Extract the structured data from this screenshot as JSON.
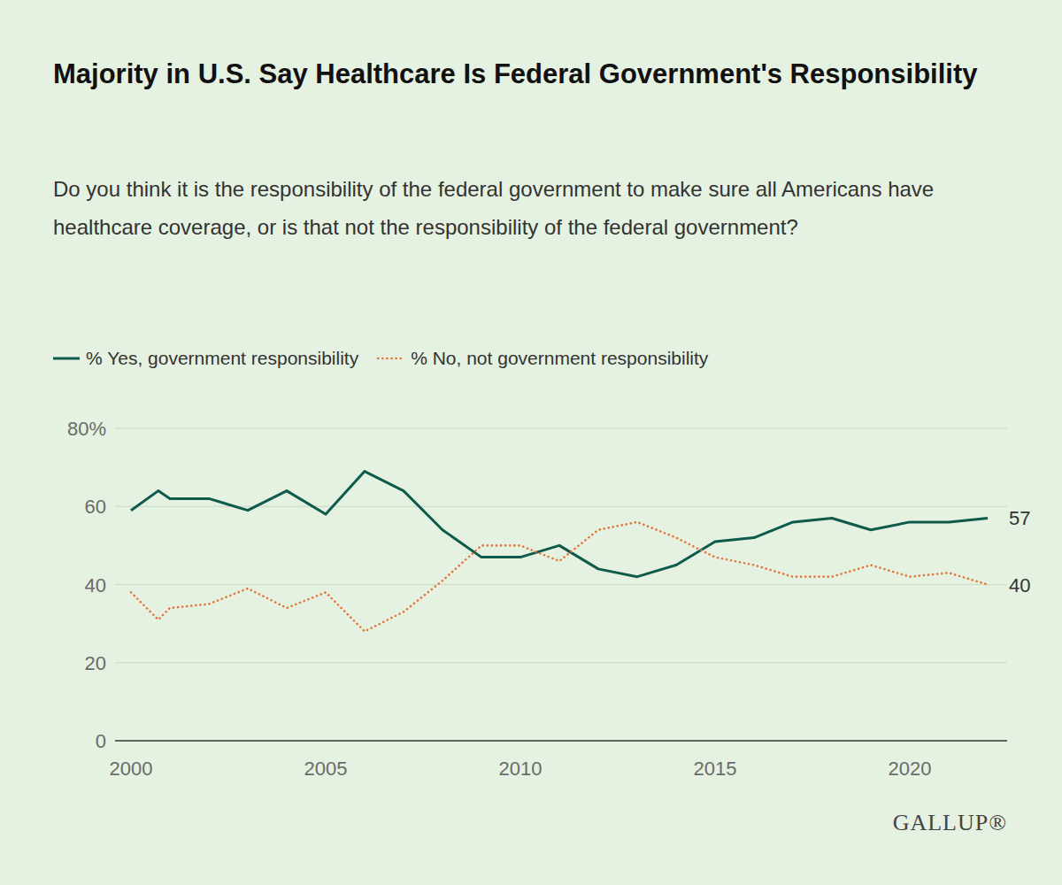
{
  "chart_data": {
    "type": "line",
    "title": "Majority in U.S. Say Healthcare Is Federal Government's Responsibility",
    "subtitle": "Do you think it is the responsibility of the federal government to make sure all Americans have healthcare coverage, or is that not the responsibility of the federal government?",
    "source": "GALLUP®",
    "x": [
      2000,
      2000.7,
      2001,
      2002,
      2003,
      2004,
      2005,
      2006,
      2007,
      2008,
      2009,
      2010,
      2011,
      2012,
      2013,
      2014,
      2015,
      2016,
      2017,
      2018,
      2019,
      2020,
      2021,
      2022
    ],
    "xlim": [
      2000,
      2022
    ],
    "xticks": [
      2000,
      2005,
      2010,
      2015,
      2020
    ],
    "ylim": [
      0,
      80
    ],
    "yticks": [
      0,
      20,
      40,
      60,
      {
        "value": 80,
        "label": "80%"
      }
    ],
    "grid": true,
    "legend": "top-left",
    "data_labels": true,
    "series": [
      {
        "name": "% Yes, government responsibility",
        "color": "#0e5a4b",
        "line_style": "solid",
        "values": [
          59,
          64,
          62,
          62,
          59,
          64,
          58,
          69,
          64,
          54,
          47,
          47,
          50,
          44,
          42,
          45,
          51,
          52,
          56,
          57,
          54,
          56,
          56,
          57
        ],
        "value_labels": [
          null,
          null,
          null,
          null,
          null,
          null,
          null,
          null,
          null,
          null,
          null,
          null,
          null,
          null,
          null,
          null,
          null,
          null,
          null,
          null,
          null,
          null,
          null,
          "57"
        ]
      },
      {
        "name": "% No, not government responsibility",
        "color": "#e2763a",
        "line_style": "dotted",
        "values": [
          38,
          31,
          34,
          35,
          39,
          34,
          38,
          28,
          33,
          41,
          50,
          50,
          46,
          54,
          56,
          52,
          47,
          45,
          42,
          42,
          45,
          42,
          43,
          40
        ],
        "value_labels": [
          null,
          null,
          null,
          null,
          null,
          null,
          null,
          null,
          null,
          null,
          null,
          null,
          null,
          null,
          null,
          null,
          null,
          null,
          null,
          null,
          null,
          null,
          null,
          "40"
        ]
      }
    ]
  }
}
